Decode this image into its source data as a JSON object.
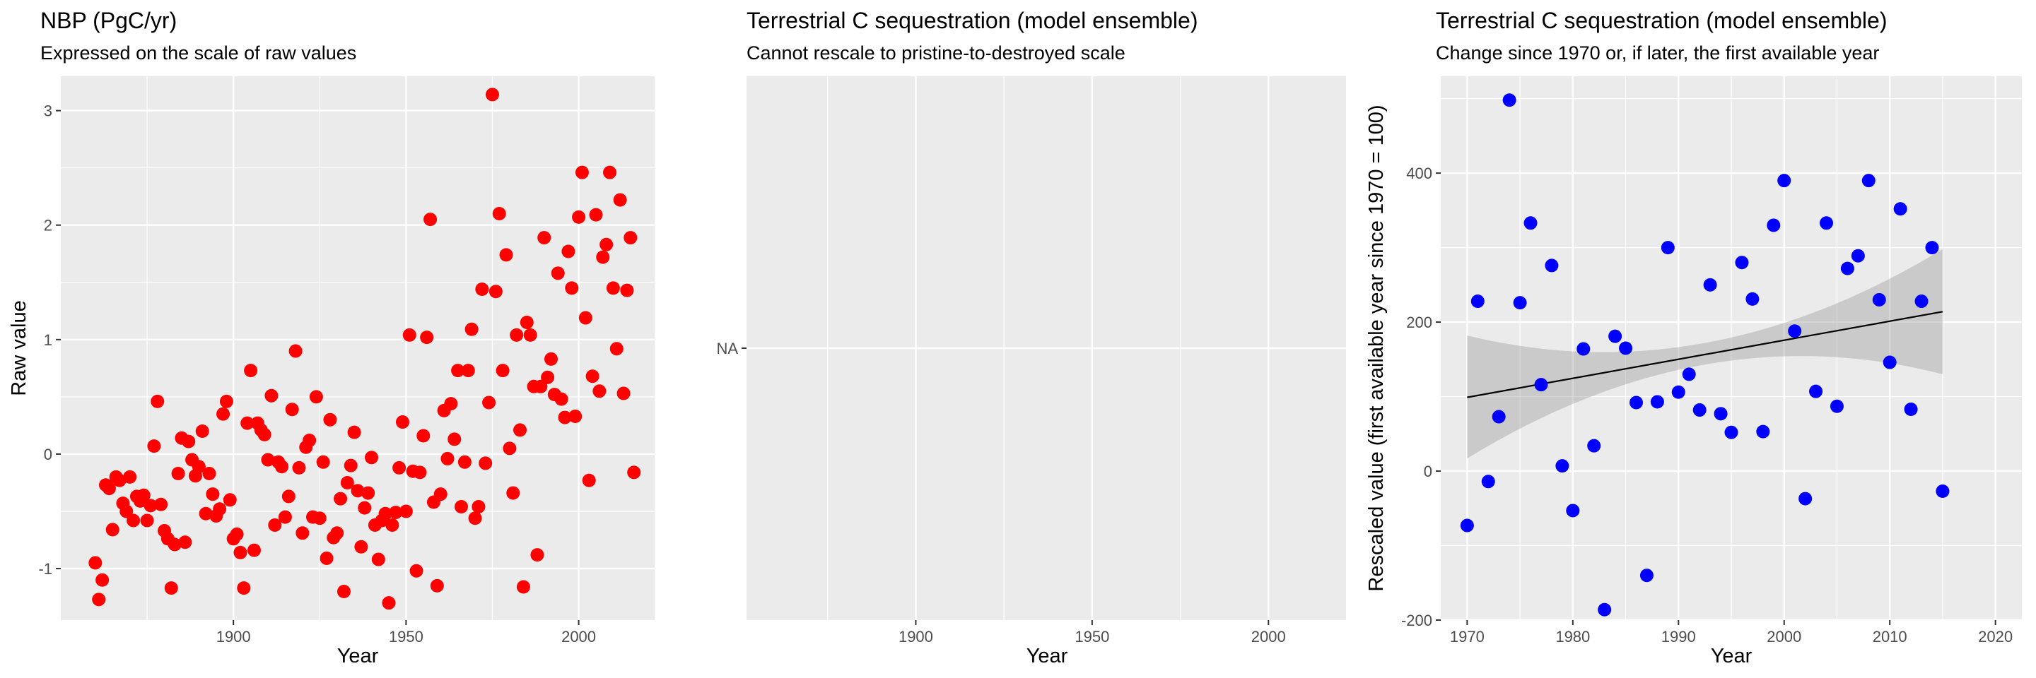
{
  "chart_data": [
    {
      "type": "scatter",
      "title": "NBP (PgC/yr)",
      "subtitle": "Expressed on the scale of raw values",
      "xlabel": "Year",
      "ylabel": "Raw value",
      "xlim": [
        1850,
        2022
      ],
      "ylim": [
        -1.45,
        3.3
      ],
      "xticks": [
        1900,
        1950,
        2000
      ],
      "yticks": [
        -1,
        0,
        1,
        2,
        3
      ],
      "grid": true,
      "point_color": "#ff0000",
      "points": [
        [
          1860,
          -0.95
        ],
        [
          1861,
          -1.27
        ],
        [
          1862,
          -1.1
        ],
        [
          1863,
          -0.27
        ],
        [
          1864,
          -0.3
        ],
        [
          1865,
          -0.66
        ],
        [
          1866,
          -0.2
        ],
        [
          1867,
          -0.23
        ],
        [
          1868,
          -0.43
        ],
        [
          1869,
          -0.5
        ],
        [
          1870,
          -0.2
        ],
        [
          1871,
          -0.58
        ],
        [
          1872,
          -0.37
        ],
        [
          1873,
          -0.41
        ],
        [
          1874,
          -0.36
        ],
        [
          1875,
          -0.58
        ],
        [
          1876,
          -0.45
        ],
        [
          1877,
          0.07
        ],
        [
          1878,
          0.46
        ],
        [
          1879,
          -0.44
        ],
        [
          1880,
          -0.67
        ],
        [
          1881,
          -0.74
        ],
        [
          1882,
          -1.17
        ],
        [
          1883,
          -0.79
        ],
        [
          1884,
          -0.17
        ],
        [
          1885,
          0.14
        ],
        [
          1886,
          -0.77
        ],
        [
          1887,
          0.11
        ],
        [
          1888,
          -0.05
        ],
        [
          1889,
          -0.19
        ],
        [
          1890,
          -0.11
        ],
        [
          1891,
          0.2
        ],
        [
          1892,
          -0.52
        ],
        [
          1893,
          -0.17
        ],
        [
          1894,
          -0.35
        ],
        [
          1895,
          -0.54
        ],
        [
          1896,
          -0.48
        ],
        [
          1897,
          0.35
        ],
        [
          1898,
          0.46
        ],
        [
          1899,
          -0.4
        ],
        [
          1900,
          -0.74
        ],
        [
          1901,
          -0.7
        ],
        [
          1902,
          -0.86
        ],
        [
          1903,
          -1.17
        ],
        [
          1904,
          0.27
        ],
        [
          1905,
          0.73
        ],
        [
          1906,
          -0.84
        ],
        [
          1907,
          0.27
        ],
        [
          1908,
          0.21
        ],
        [
          1909,
          0.17
        ],
        [
          1910,
          -0.05
        ],
        [
          1911,
          0.51
        ],
        [
          1912,
          -0.62
        ],
        [
          1913,
          -0.07
        ],
        [
          1914,
          -0.11
        ],
        [
          1915,
          -0.55
        ],
        [
          1916,
          -0.37
        ],
        [
          1917,
          0.39
        ],
        [
          1918,
          0.9
        ],
        [
          1919,
          -0.12
        ],
        [
          1920,
          -0.69
        ],
        [
          1921,
          0.06
        ],
        [
          1922,
          0.12
        ],
        [
          1923,
          -0.55
        ],
        [
          1924,
          0.5
        ],
        [
          1925,
          -0.56
        ],
        [
          1926,
          -0.07
        ],
        [
          1927,
          -0.91
        ],
        [
          1928,
          0.3
        ],
        [
          1929,
          -0.73
        ],
        [
          1930,
          -0.69
        ],
        [
          1931,
          -0.39
        ],
        [
          1932,
          -1.2
        ],
        [
          1933,
          -0.25
        ],
        [
          1934,
          -0.1
        ],
        [
          1935,
          0.19
        ],
        [
          1936,
          -0.32
        ],
        [
          1937,
          -0.81
        ],
        [
          1938,
          -0.47
        ],
        [
          1939,
          -0.34
        ],
        [
          1940,
          -0.03
        ],
        [
          1941,
          -0.62
        ],
        [
          1942,
          -0.92
        ],
        [
          1943,
          -0.58
        ],
        [
          1944,
          -0.52
        ],
        [
          1945,
          -1.3
        ],
        [
          1946,
          -0.62
        ],
        [
          1947,
          -0.51
        ],
        [
          1948,
          -0.12
        ],
        [
          1949,
          0.28
        ],
        [
          1950,
          -0.5
        ],
        [
          1951,
          1.04
        ],
        [
          1952,
          -0.15
        ],
        [
          1953,
          -1.02
        ],
        [
          1954,
          -0.16
        ],
        [
          1955,
          0.16
        ],
        [
          1956,
          1.02
        ],
        [
          1957,
          2.05
        ],
        [
          1958,
          -0.42
        ],
        [
          1959,
          -1.15
        ],
        [
          1960,
          -0.35
        ],
        [
          1961,
          0.38
        ],
        [
          1962,
          -0.04
        ],
        [
          1963,
          0.44
        ],
        [
          1964,
          0.13
        ],
        [
          1965,
          0.73
        ],
        [
          1966,
          -0.46
        ],
        [
          1967,
          -0.07
        ],
        [
          1968,
          0.73
        ],
        [
          1969,
          1.09
        ],
        [
          1970,
          -0.56
        ],
        [
          1971,
          -0.46
        ],
        [
          1972,
          1.44
        ],
        [
          1973,
          -0.08
        ],
        [
          1974,
          0.45
        ],
        [
          1975,
          3.14
        ],
        [
          1976,
          1.42
        ],
        [
          1977,
          2.1
        ],
        [
          1978,
          0.73
        ],
        [
          1979,
          1.74
        ],
        [
          1980,
          0.05
        ],
        [
          1981,
          -0.34
        ],
        [
          1982,
          1.04
        ],
        [
          1983,
          0.21
        ],
        [
          1984,
          -1.16
        ],
        [
          1985,
          1.15
        ],
        [
          1986,
          1.04
        ],
        [
          1987,
          0.59
        ],
        [
          1988,
          -0.88
        ],
        [
          1989,
          0.59
        ],
        [
          1990,
          1.89
        ],
        [
          1991,
          0.67
        ],
        [
          1992,
          0.83
        ],
        [
          1993,
          0.52
        ],
        [
          1994,
          1.58
        ],
        [
          1995,
          0.48
        ],
        [
          1996,
          0.32
        ],
        [
          1997,
          1.77
        ],
        [
          1998,
          1.45
        ],
        [
          1999,
          0.33
        ],
        [
          2000,
          2.07
        ],
        [
          2001,
          2.46
        ],
        [
          2002,
          1.19
        ],
        [
          2003,
          -0.23
        ],
        [
          2004,
          0.68
        ],
        [
          2005,
          2.09
        ],
        [
          2006,
          0.55
        ],
        [
          2007,
          1.72
        ],
        [
          2008,
          1.83
        ],
        [
          2009,
          2.46
        ],
        [
          2010,
          1.45
        ],
        [
          2011,
          0.92
        ],
        [
          2012,
          2.22
        ],
        [
          2013,
          0.53
        ],
        [
          2014,
          1.43
        ],
        [
          2015,
          1.89
        ],
        [
          2016,
          -0.16
        ]
      ]
    },
    {
      "type": "scatter",
      "title": "Terrestrial C sequestration (model ensemble)",
      "subtitle": "Cannot rescale to pristine-to-destroyed scale",
      "xlabel": "Year",
      "ylabel": "",
      "xlim": [
        1852,
        2022
      ],
      "xticks": [
        1900,
        1950,
        2000
      ],
      "yticks": [
        "NA"
      ],
      "grid": true,
      "points": []
    },
    {
      "type": "scatter",
      "title": "Terrestrial C sequestration (model ensemble)",
      "subtitle": "Change since 1970 or, if later, the first available year",
      "xlabel": "Year",
      "ylabel": "Rescaled value (first available year since 1970 = 100)",
      "xlim": [
        1967.5,
        2022.5
      ],
      "ylim": [
        -200,
        530
      ],
      "xticks": [
        1970,
        1980,
        1990,
        2000,
        2010,
        2020
      ],
      "yticks": [
        -200,
        0,
        200,
        400
      ],
      "grid": true,
      "point_color": "#0000ff",
      "trend": {
        "x": [
          1970,
          2015
        ],
        "y": [
          99,
          214
        ],
        "band_lower": [
          17,
          130
        ],
        "band_upper": [
          182,
          298
        ],
        "band_mid_lower": 143,
        "band_mid_upper": 172,
        "band_mid_x": 1992.5
      },
      "points": [
        [
          1970,
          -73
        ],
        [
          1971,
          228
        ],
        [
          1972,
          -14
        ],
        [
          1973,
          73
        ],
        [
          1974,
          498
        ],
        [
          1975,
          226
        ],
        [
          1976,
          333
        ],
        [
          1977,
          116
        ],
        [
          1978,
          276
        ],
        [
          1979,
          7
        ],
        [
          1980,
          -53
        ],
        [
          1981,
          164
        ],
        [
          1982,
          34
        ],
        [
          1983,
          -186
        ],
        [
          1984,
          181
        ],
        [
          1985,
          165
        ],
        [
          1986,
          92
        ],
        [
          1987,
          -140
        ],
        [
          1988,
          93
        ],
        [
          1989,
          300
        ],
        [
          1990,
          106
        ],
        [
          1991,
          130
        ],
        [
          1992,
          82
        ],
        [
          1993,
          250
        ],
        [
          1994,
          77
        ],
        [
          1995,
          52
        ],
        [
          1996,
          280
        ],
        [
          1997,
          231
        ],
        [
          1998,
          53
        ],
        [
          1999,
          330
        ],
        [
          2000,
          390
        ],
        [
          2001,
          188
        ],
        [
          2002,
          -37
        ],
        [
          2003,
          107
        ],
        [
          2004,
          333
        ],
        [
          2005,
          87
        ],
        [
          2006,
          272
        ],
        [
          2007,
          289
        ],
        [
          2008,
          390
        ],
        [
          2009,
          230
        ],
        [
          2010,
          146
        ],
        [
          2011,
          352
        ],
        [
          2012,
          83
        ],
        [
          2013,
          228
        ],
        [
          2014,
          300
        ],
        [
          2015,
          -27
        ]
      ]
    }
  ]
}
